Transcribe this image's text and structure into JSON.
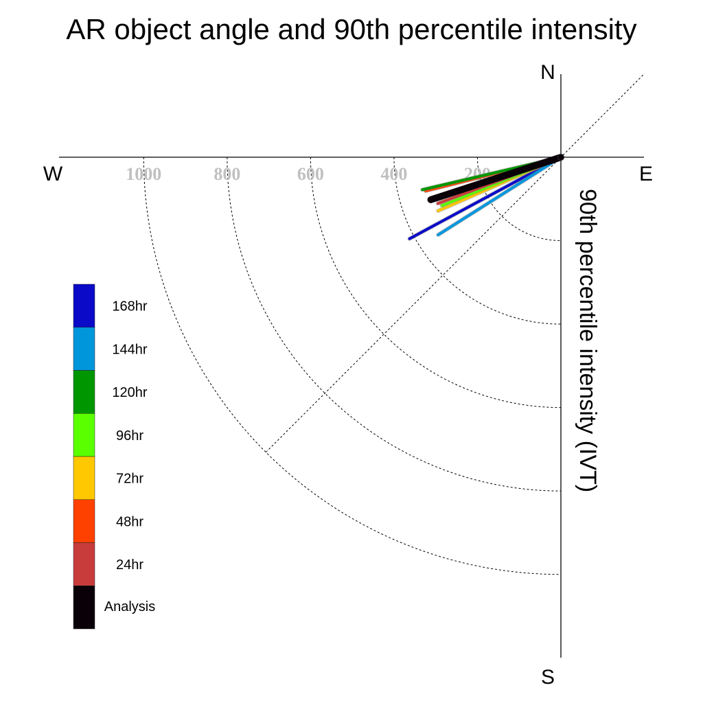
{
  "chart_data": {
    "type": "polar-line",
    "title": "AR object angle and 90th percentile intensity",
    "radial_label": "90th percentile intensity (IVT)",
    "compass": {
      "north": "N",
      "east": "E",
      "south": "S",
      "west": "W"
    },
    "radial_ticks": [
      "200",
      "400",
      "600",
      "800",
      "1000"
    ],
    "radial_tick_values": [
      200,
      400,
      600,
      800,
      1000
    ],
    "radial_range": [
      0,
      1000
    ],
    "series": [
      {
        "name": "168hr",
        "color": "#0a0ac8",
        "angle_deg": -28.3,
        "intensity": 412
      },
      {
        "name": "144hr",
        "color": "#0096dc",
        "angle_deg": -32.3,
        "intensity": 348
      },
      {
        "name": "120hr",
        "color": "#009600",
        "angle_deg": -13.2,
        "intensity": 341
      },
      {
        "name": "96hr",
        "color": "#5aff00",
        "angle_deg": -22.1,
        "intensity": 308
      },
      {
        "name": "72hr",
        "color": "#ffc800",
        "angle_deg": -23.6,
        "intensity": 321
      },
      {
        "name": "48hr",
        "color": "#ff4100",
        "angle_deg": -14.0,
        "intensity": 334
      },
      {
        "name": "24hr",
        "color": "#c83c3c",
        "angle_deg": -20.6,
        "intensity": 315
      },
      {
        "name": "Analysis",
        "color": "#0a0008",
        "angle_deg": -18.1,
        "intensity": 328
      }
    ],
    "legend": {
      "placement": "left",
      "entries": [
        {
          "label": "168hr",
          "color": "#0a0ac8"
        },
        {
          "label": "144hr",
          "color": "#0096dc"
        },
        {
          "label": "120hr",
          "color": "#009600"
        },
        {
          "label": "96hr",
          "color": "#5aff00"
        },
        {
          "label": "72hr",
          "color": "#ffc800"
        },
        {
          "label": "48hr",
          "color": "#ff4100"
        },
        {
          "label": "24hr",
          "color": "#c83c3c"
        },
        {
          "label": "Analysis",
          "color": "#0a0008"
        }
      ]
    }
  }
}
